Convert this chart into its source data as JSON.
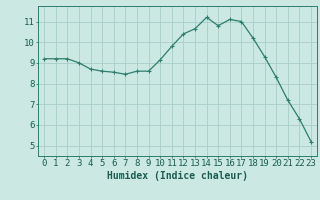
{
  "x": [
    0,
    1,
    2,
    3,
    4,
    5,
    6,
    7,
    8,
    9,
    10,
    11,
    12,
    13,
    14,
    15,
    16,
    17,
    18,
    19,
    20,
    21,
    22,
    23
  ],
  "y": [
    9.2,
    9.2,
    9.2,
    9.0,
    8.7,
    8.6,
    8.55,
    8.45,
    8.6,
    8.6,
    9.15,
    9.8,
    10.4,
    10.65,
    11.2,
    10.8,
    11.1,
    11.0,
    10.2,
    9.3,
    8.3,
    7.2,
    6.3,
    5.2
  ],
  "line_color": "#2e7d6e",
  "marker": "+",
  "marker_size": 3,
  "marker_linewidth": 0.8,
  "line_width": 0.9,
  "background_color": "#cce8e2",
  "grid_color": "#a8cdc7",
  "xlabel": "Humidex (Indice chaleur)",
  "xlim": [
    -0.5,
    23.5
  ],
  "ylim": [
    4.5,
    11.75
  ],
  "yticks": [
    5,
    6,
    7,
    8,
    9,
    10,
    11
  ],
  "xticks": [
    0,
    1,
    2,
    3,
    4,
    5,
    6,
    7,
    8,
    9,
    10,
    11,
    12,
    13,
    14,
    15,
    16,
    17,
    18,
    19,
    20,
    21,
    22,
    23
  ],
  "xtick_labels": [
    "0",
    "1",
    "2",
    "3",
    "4",
    "5",
    "6",
    "7",
    "8",
    "9",
    "10",
    "11",
    "12",
    "13",
    "14",
    "15",
    "16",
    "17",
    "18",
    "19",
    "20",
    "21",
    "22",
    "23"
  ],
  "tick_color": "#1a5c50",
  "spine_color": "#2e7d6e",
  "xlabel_fontsize": 7,
  "tick_fontsize": 6.5,
  "grid_linewidth": 0.6,
  "spine_linewidth": 0.7
}
